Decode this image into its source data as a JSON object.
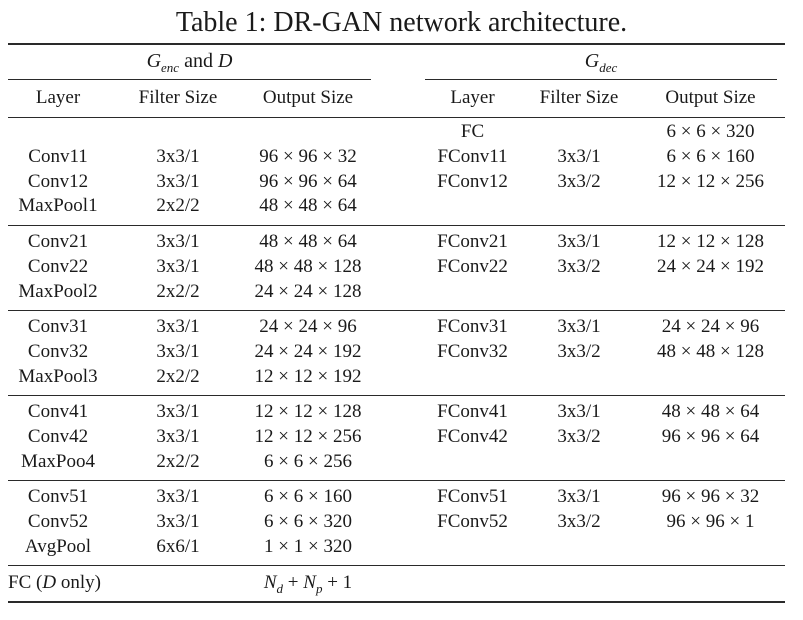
{
  "caption": "Table 1: DR-GAN network architecture.",
  "headers": {
    "enc": "G_enc and D",
    "dec": "G_dec",
    "layer": "Layer",
    "filter": "Filter Size",
    "output": "Output Size"
  },
  "blocks": [
    {
      "enc": [
        [
          "",
          "",
          ""
        ],
        [
          "Conv11",
          "3x3/1",
          "96 × 96 × 32"
        ],
        [
          "Conv12",
          "3x3/1",
          "96 × 96 × 64"
        ],
        [
          "MaxPool1",
          "2x2/2",
          "48 × 48 × 64"
        ]
      ],
      "dec": [
        [
          "FC",
          "",
          "6 × 6 × 320"
        ],
        [
          "FConv11",
          "3x3/1",
          "6 × 6 × 160"
        ],
        [
          "FConv12",
          "3x3/2",
          "12 × 12 × 256"
        ],
        [
          "",
          "",
          ""
        ]
      ]
    },
    {
      "enc": [
        [
          "Conv21",
          "3x3/1",
          "48 × 48 × 64"
        ],
        [
          "Conv22",
          "3x3/1",
          "48 × 48 × 128"
        ],
        [
          "MaxPool2",
          "2x2/2",
          "24 × 24 × 128"
        ]
      ],
      "dec": [
        [
          "FConv21",
          "3x3/1",
          "12 × 12 × 128"
        ],
        [
          "FConv22",
          "3x3/2",
          "24 × 24 × 192"
        ],
        [
          "",
          "",
          ""
        ]
      ]
    },
    {
      "enc": [
        [
          "Conv31",
          "3x3/1",
          "24 × 24 × 96"
        ],
        [
          "Conv32",
          "3x3/1",
          "24 × 24 × 192"
        ],
        [
          "MaxPool3",
          "2x2/2",
          "12 × 12 × 192"
        ]
      ],
      "dec": [
        [
          "FConv31",
          "3x3/1",
          "24 × 24 × 96"
        ],
        [
          "FConv32",
          "3x3/2",
          "48 × 48 × 128"
        ],
        [
          "",
          "",
          ""
        ]
      ]
    },
    {
      "enc": [
        [
          "Conv41",
          "3x3/1",
          "12 × 12 × 128"
        ],
        [
          "Conv42",
          "3x3/1",
          "12 × 12 × 256"
        ],
        [
          "MaxPoo4",
          "2x2/2",
          "6 × 6 × 256"
        ]
      ],
      "dec": [
        [
          "FConv41",
          "3x3/1",
          "48 × 48 × 64"
        ],
        [
          "FConv42",
          "3x3/2",
          "96 × 96 × 64"
        ],
        [
          "",
          "",
          ""
        ]
      ]
    },
    {
      "enc": [
        [
          "Conv51",
          "3x3/1",
          "6 × 6 × 160"
        ],
        [
          "Conv52",
          "3x3/1",
          "6 × 6 × 320"
        ],
        [
          "AvgPool",
          "6x6/1",
          "1 × 1 × 320"
        ]
      ],
      "dec": [
        [
          "FConv51",
          "3x3/1",
          "96 × 96 × 32"
        ],
        [
          "FConv52",
          "3x3/2",
          "96 × 96 × 1"
        ],
        [
          "",
          "",
          ""
        ]
      ]
    }
  ],
  "fc_row": {
    "label": "FC (D only)",
    "output": "N_d + N_p + 1"
  }
}
